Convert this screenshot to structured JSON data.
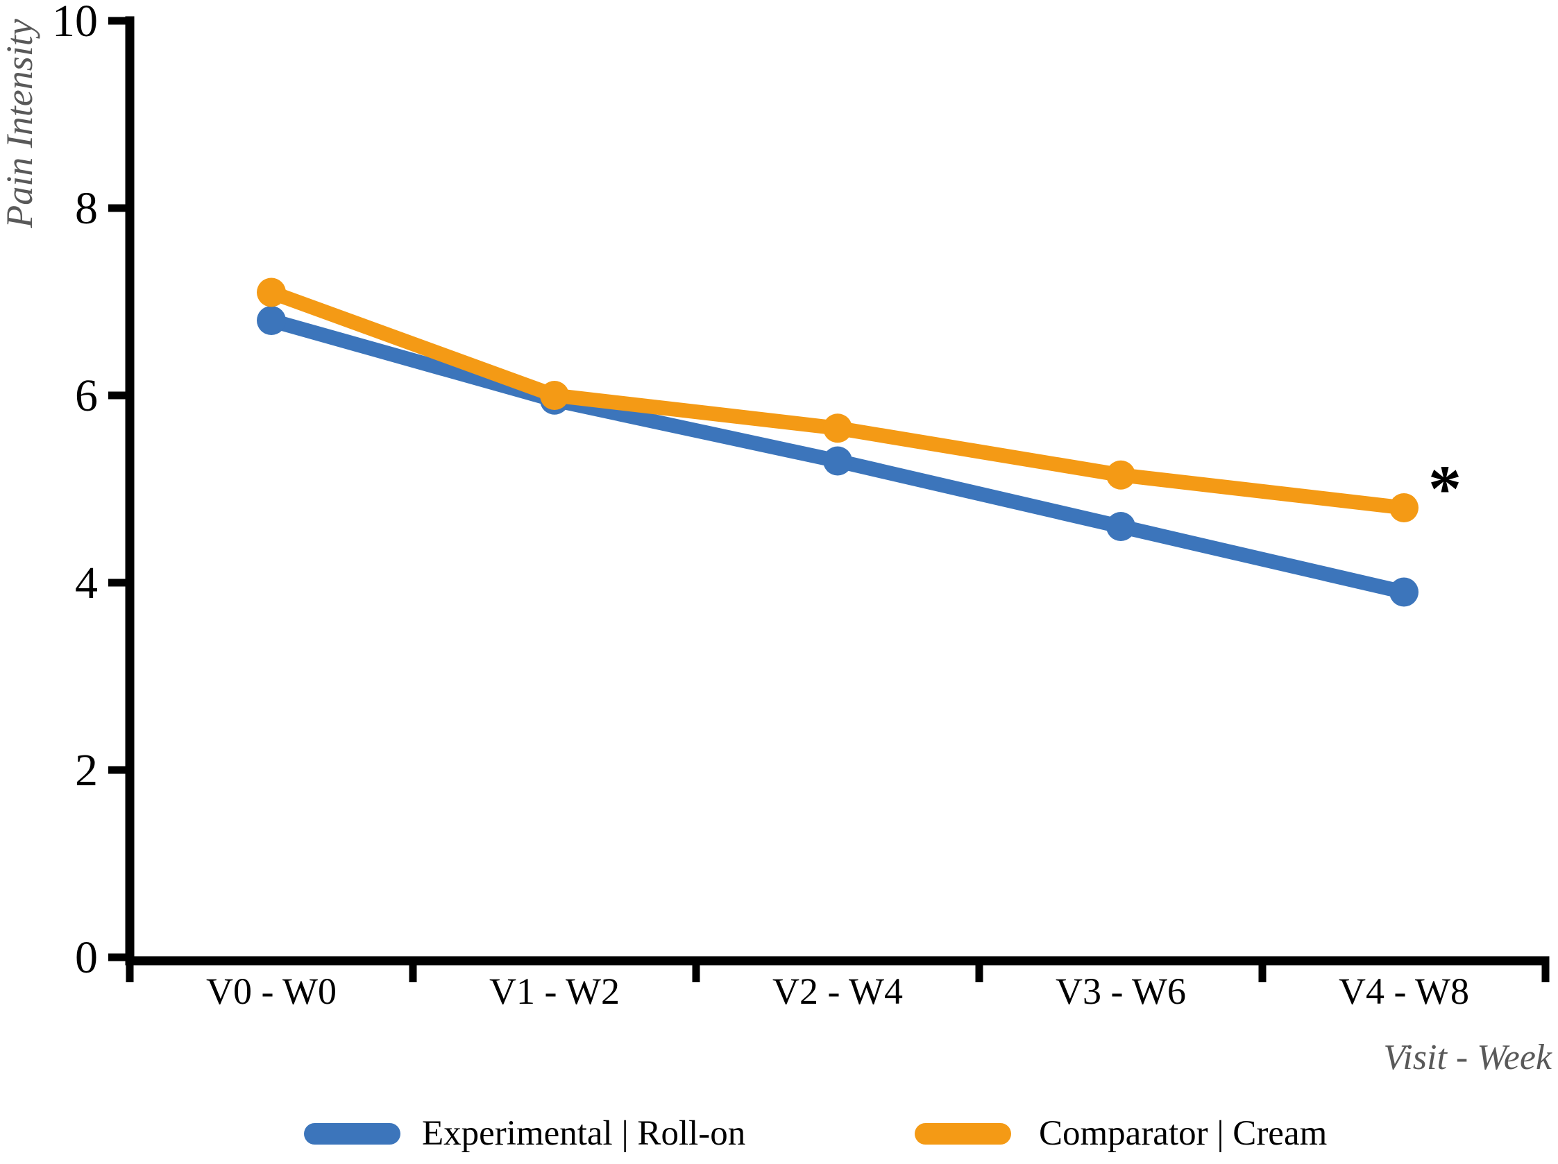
{
  "chart_data": {
    "type": "line",
    "title": "",
    "categories": [
      "V0 - W0",
      "V1 - W2",
      "V2 - W4",
      "V3 - W6",
      "V4 - W8"
    ],
    "series": [
      {
        "name": "Experimental | Roll-on",
        "color": "#3C75BB",
        "values": [
          6.8,
          5.95,
          5.3,
          4.6,
          3.9
        ]
      },
      {
        "name": "Comparator | Cream",
        "color": "#F49A15",
        "values": [
          7.1,
          6.0,
          5.65,
          5.15,
          4.8
        ]
      }
    ],
    "xlabel": "Visit - Week",
    "ylabel": "Pain Intensity",
    "ylim": [
      0,
      10
    ],
    "yticks": [
      0,
      2,
      4,
      6,
      8,
      10
    ],
    "grid": false,
    "legend_position": "bottom",
    "annotation": {
      "text": "*",
      "series": "Comparator | Cream",
      "point_index": 4,
      "position": "above-right of last comparator point"
    }
  },
  "colors": {
    "axis": "#000000",
    "tick_label": "#000000",
    "axis_title": "#595959",
    "background": "#FFFFFF",
    "annotation": "#000000"
  }
}
